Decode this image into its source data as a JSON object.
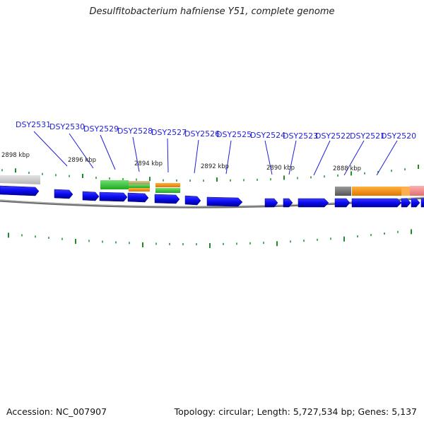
{
  "title": "Desulfitobacterium hafniense Y51, complete genome",
  "accession_text": "Accession: NC_007907",
  "summary_text": "Topology: circular; Length: 5,727,534 bp; Genes: 5,137",
  "colors": {
    "gene_blue": "#0a0af0",
    "tick_green": "#1e8c28",
    "locus_text": "#1f1fdd",
    "backbone": "#777777",
    "gene_green": "#3cc93c",
    "gene_orange": "#f7910a",
    "gene_tan": "#b8ad6e",
    "gene_gray": "#6e6e6e",
    "gene_pink": "#f08a8a"
  },
  "scale_labels": [
    "2898 kbp",
    "2896 kbp",
    "2894 kbp",
    "2892 kbp",
    "2890 kbp",
    "2888 kbp"
  ],
  "locus_tags": [
    "DSY2531",
    "DSY2530",
    "DSY2529",
    "DSY2528",
    "DSY2527",
    "DSY2526",
    "DSY2525",
    "DSY2524",
    "DSY2523",
    "DSY2522",
    "DSY2521",
    "DSY2520"
  ]
}
